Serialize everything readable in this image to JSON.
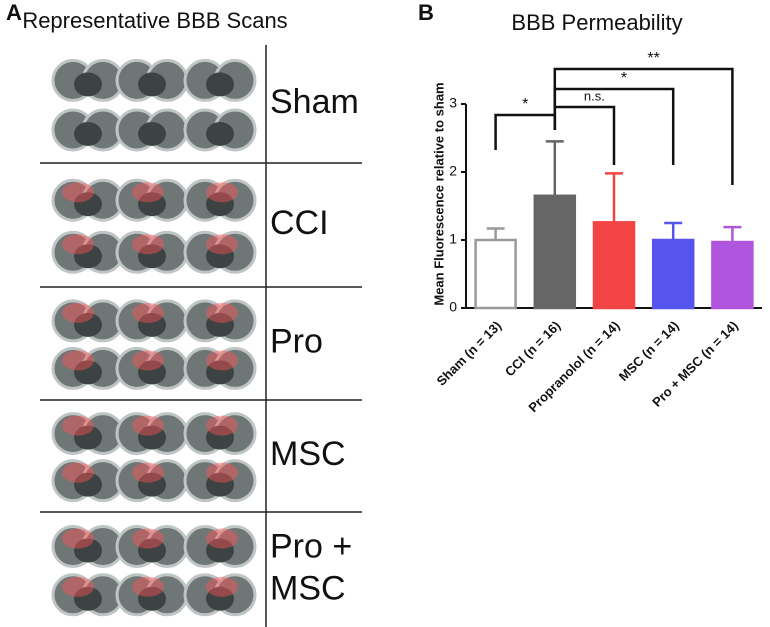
{
  "panel_a": {
    "label": "A",
    "title": "Representative BBB Scans",
    "row_labels": [
      [
        "Sham"
      ],
      [
        "CCI"
      ],
      [
        "Pro"
      ],
      [
        "MSC"
      ],
      [
        "Pro +",
        "MSC"
      ]
    ]
  },
  "chart_data": {
    "type": "bar",
    "panel_label": "B",
    "title": "BBB Permeability",
    "ylabel": "Mean Fluorescence relative to sham",
    "categories": [
      "Sham (n = 13)",
      "CCI (n = 16)",
      "Propranolol (n = 14)",
      "MSC (n = 14)",
      "Pro + MSC (n = 14)"
    ],
    "values": [
      1.0,
      1.65,
      1.26,
      1.0,
      0.97
    ],
    "errors": [
      0.17,
      0.8,
      0.72,
      0.25,
      0.22
    ],
    "colors": [
      "#ffffff",
      "#666666",
      "#f24444",
      "#5555ee",
      "#b055dd"
    ],
    "ylim": [
      0,
      3
    ],
    "yticks": [
      0,
      1,
      2,
      3
    ],
    "annotations": [
      "*",
      "n.s.",
      "*",
      "**"
    ]
  }
}
